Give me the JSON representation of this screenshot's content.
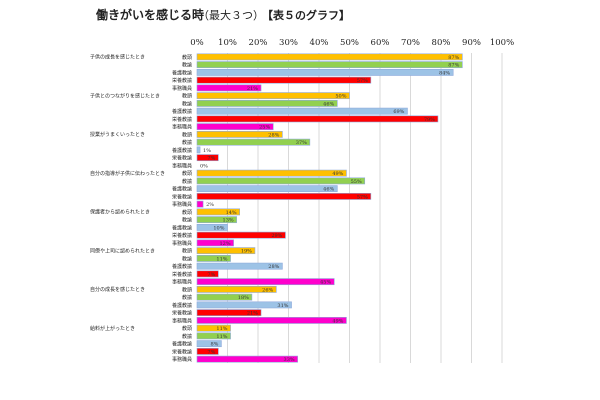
{
  "chart_data": {
    "type": "bar",
    "orientation": "horizontal",
    "title": "働きがいを感じる時",
    "subtitle": "（最大３つ）",
    "note": "【表５のグラフ】",
    "xlim": [
      0,
      100
    ],
    "x_ticks": [
      "0%",
      "10%",
      "20%",
      "30%",
      "40%",
      "50%",
      "60%",
      "70%",
      "80%",
      "90%",
      "100%"
    ],
    "grid": true,
    "roles": [
      "教頭",
      "教諭",
      "養護教諭",
      "栄養教諭",
      "事務職員"
    ],
    "role_colors": [
      "#FFC000",
      "#92D050",
      "#9DC3E6",
      "#FF0000",
      "#FF00CC"
    ],
    "groups": [
      {
        "label": "子供の成長を感じたとき",
        "values": [
          87,
          87,
          84,
          57,
          21
        ]
      },
      {
        "label": "子供とのつながりを感じたとき",
        "values": [
          50,
          46,
          69,
          79,
          25
        ]
      },
      {
        "label": "授業がうまくいったとき",
        "values": [
          28,
          37,
          1,
          7,
          0
        ]
      },
      {
        "label": "自分の指導が子供に伝わったとき",
        "values": [
          49,
          55,
          46,
          57,
          2
        ]
      },
      {
        "label": "保護者から認められたとき",
        "values": [
          14,
          13,
          10,
          29,
          12
        ]
      },
      {
        "label": "同僚や上司に認められたとき",
        "values": [
          19,
          11,
          28,
          7,
          45
        ]
      },
      {
        "label": "自分の成長を感じたとき",
        "values": [
          26,
          18,
          31,
          21,
          49
        ]
      },
      {
        "label": "給料が上がったとき",
        "values": [
          11,
          11,
          8,
          7,
          33
        ]
      }
    ]
  }
}
